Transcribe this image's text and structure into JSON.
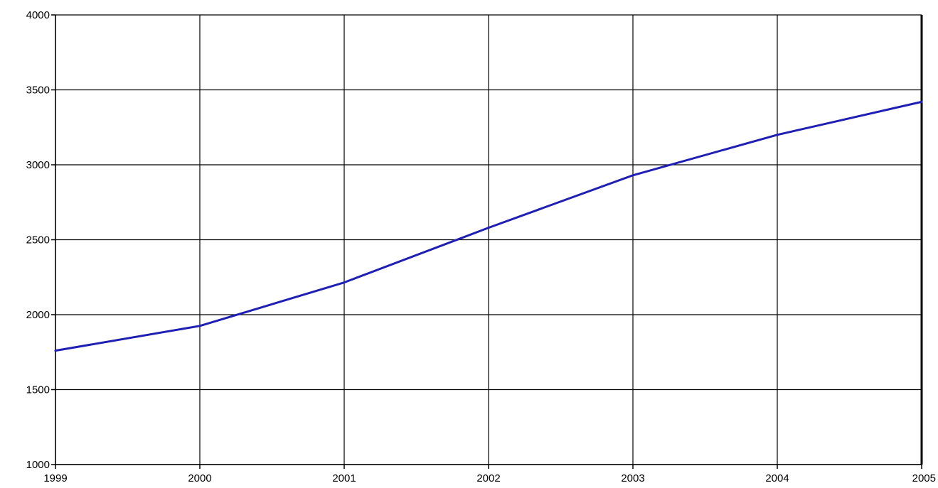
{
  "chart_data": {
    "type": "line",
    "title": "",
    "xlabel": "",
    "ylabel": "",
    "x": [
      1999,
      2000,
      2001,
      2002,
      2003,
      2004,
      2005
    ],
    "series": [
      {
        "values": [
          1760,
          1925,
          2215,
          2580,
          2930,
          3200,
          3420
        ],
        "color": "#1f1fb4"
      }
    ],
    "xlim": [
      1999,
      2005
    ],
    "ylim": [
      1000,
      4000
    ],
    "x_ticks": [
      "1999",
      "2000",
      "2001",
      "2002",
      "2003",
      "2004",
      "2005"
    ],
    "y_ticks": [
      "1000",
      "1500",
      "2000",
      "2500",
      "3000",
      "3500",
      "4000"
    ],
    "grid": true,
    "legend": "none"
  }
}
